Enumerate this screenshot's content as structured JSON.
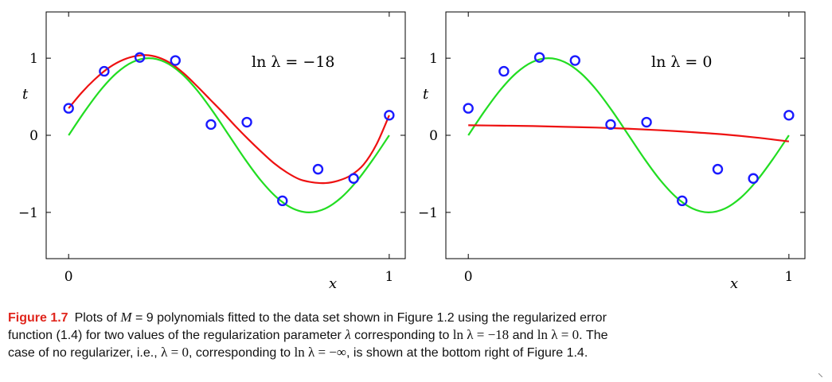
{
  "chart_data": [
    {
      "type": "line",
      "panel": "left",
      "title": "",
      "annotation": "ln λ = −18",
      "xlabel": "x",
      "ylabel": "t",
      "xlim": [
        -0.07,
        1.05
      ],
      "ylim": [
        -1.6,
        1.6
      ],
      "xticks": [
        0,
        1
      ],
      "xtick_labels": [
        "0",
        "1"
      ],
      "yticks": [
        -1,
        0,
        1
      ],
      "ytick_labels": [
        "−1",
        "0",
        "1"
      ],
      "points": {
        "name": "data",
        "color": "#1a1aff",
        "x": [
          0,
          0.111,
          0.222,
          0.333,
          0.444,
          0.556,
          0.667,
          0.778,
          0.889,
          1.0
        ],
        "y": [
          0.35,
          0.83,
          1.01,
          0.97,
          0.14,
          0.17,
          -0.85,
          -0.44,
          -0.56,
          0.26
        ]
      },
      "series": [
        {
          "name": "sin(2πx)",
          "color": "#22dd22",
          "x": [
            0,
            0.05,
            0.1,
            0.15,
            0.2,
            0.25,
            0.3,
            0.35,
            0.4,
            0.45,
            0.5,
            0.55,
            0.6,
            0.65,
            0.7,
            0.75,
            0.8,
            0.85,
            0.9,
            0.95,
            1.0
          ],
          "y": [
            0,
            0.309,
            0.588,
            0.809,
            0.951,
            1.0,
            0.951,
            0.809,
            0.588,
            0.309,
            0,
            -0.309,
            -0.588,
            -0.809,
            -0.951,
            -1.0,
            -0.951,
            -0.809,
            -0.588,
            -0.309,
            0
          ]
        },
        {
          "name": "M = 9 fit",
          "color": "#ee1111",
          "x": [
            0,
            0.04,
            0.08,
            0.12,
            0.16,
            0.2,
            0.24,
            0.28,
            0.32,
            0.36,
            0.4,
            0.44,
            0.48,
            0.52,
            0.56,
            0.6,
            0.64,
            0.68,
            0.72,
            0.76,
            0.8,
            0.84,
            0.88,
            0.92,
            0.96,
            1.0
          ],
          "y": [
            0.35,
            0.55,
            0.72,
            0.86,
            0.96,
            1.02,
            1.04,
            1.01,
            0.93,
            0.8,
            0.64,
            0.47,
            0.3,
            0.12,
            -0.05,
            -0.21,
            -0.36,
            -0.48,
            -0.57,
            -0.61,
            -0.62,
            -0.59,
            -0.52,
            -0.38,
            -0.12,
            0.26
          ]
        }
      ]
    },
    {
      "type": "line",
      "panel": "right",
      "title": "",
      "annotation": "ln λ = 0",
      "xlabel": "x",
      "ylabel": "t",
      "xlim": [
        -0.07,
        1.05
      ],
      "ylim": [
        -1.6,
        1.6
      ],
      "xticks": [
        0,
        1
      ],
      "xtick_labels": [
        "0",
        "1"
      ],
      "yticks": [
        -1,
        0,
        1
      ],
      "ytick_labels": [
        "−1",
        "0",
        "1"
      ],
      "points": {
        "name": "data",
        "color": "#1a1aff",
        "x": [
          0,
          0.111,
          0.222,
          0.333,
          0.444,
          0.556,
          0.667,
          0.778,
          0.889,
          1.0
        ],
        "y": [
          0.35,
          0.83,
          1.01,
          0.97,
          0.14,
          0.17,
          -0.85,
          -0.44,
          -0.56,
          0.26
        ]
      },
      "series": [
        {
          "name": "sin(2πx)",
          "color": "#22dd22",
          "x": [
            0,
            0.05,
            0.1,
            0.15,
            0.2,
            0.25,
            0.3,
            0.35,
            0.4,
            0.45,
            0.5,
            0.55,
            0.6,
            0.65,
            0.7,
            0.75,
            0.8,
            0.85,
            0.9,
            0.95,
            1.0
          ],
          "y": [
            0,
            0.309,
            0.588,
            0.809,
            0.951,
            1.0,
            0.951,
            0.809,
            0.588,
            0.309,
            0,
            -0.309,
            -0.588,
            -0.809,
            -0.951,
            -1.0,
            -0.951,
            -0.809,
            -0.588,
            -0.309,
            0
          ]
        },
        {
          "name": "M = 9 fit",
          "color": "#ee1111",
          "x": [
            0,
            0.1,
            0.2,
            0.3,
            0.4,
            0.5,
            0.6,
            0.7,
            0.8,
            0.9,
            1.0
          ],
          "y": [
            0.13,
            0.125,
            0.12,
            0.11,
            0.1,
            0.085,
            0.065,
            0.04,
            0.01,
            -0.03,
            -0.08
          ]
        }
      ]
    }
  ],
  "caption": {
    "label": "Figure 1.7",
    "line1_a": "Plots of ",
    "line1_M": "M",
    "line1_b": " = 9 polynomials fitted to the data set shown in Figure 1.2 using the regularized error",
    "line2_a": "function (1.4) for two values of the regularization parameter ",
    "line2_lambda": "λ",
    "line2_b": " corresponding to ",
    "line2_m1": "ln λ = −18",
    "line2_c": " and ",
    "line2_m2": "ln λ = 0",
    "line2_d": ". The",
    "line3_a": "case of no regularizer, i.e., ",
    "line3_m1": "λ = 0",
    "line3_b": ", corresponding to ",
    "line3_m2": "ln λ = −∞",
    "line3_c": ", is shown at the bottom right of Figure 1.4."
  }
}
